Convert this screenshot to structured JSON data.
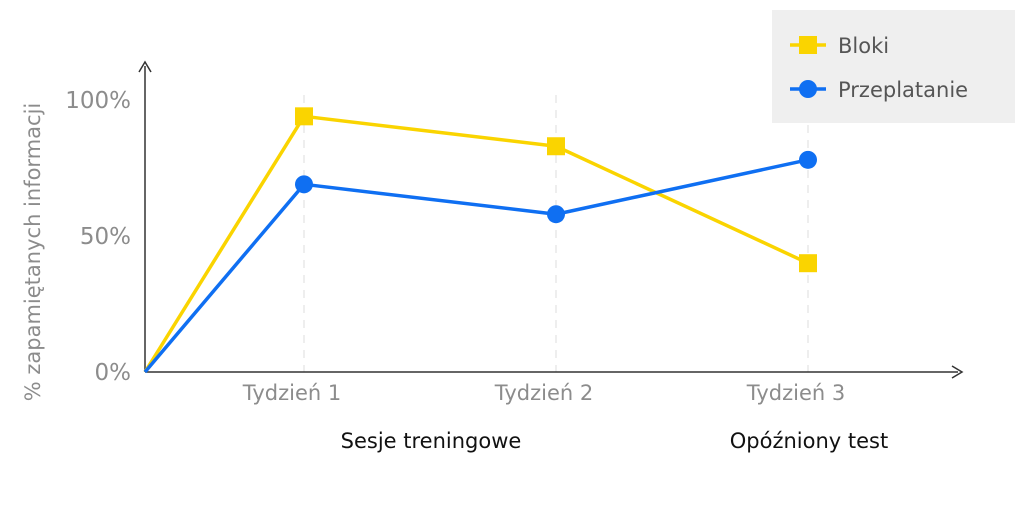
{
  "colors": {
    "bloki": "#fad400",
    "przeplatanie": "#0f6ff2",
    "axis": "#333333",
    "tick_text": "#8c8c8c",
    "group_text": "#111111",
    "grid": "#dcdcdc",
    "legend_bg": "#efefef"
  },
  "chart_data": {
    "type": "line",
    "title": "",
    "xlabel": "",
    "ylabel": "% zapamiętanych informacji",
    "x_categories": [
      "Tydzień 1",
      "Tydzień 2",
      "Tydzień 3"
    ],
    "x_groups": [
      {
        "label": "Sesje treningowe",
        "covers": [
          "Tydzień 1",
          "Tydzień 2"
        ]
      },
      {
        "label": "Opóźniony test",
        "covers": [
          "Tydzień 3"
        ]
      }
    ],
    "y_ticks": [
      "0%",
      "50%",
      "100%"
    ],
    "ylim": [
      0,
      100
    ],
    "legend_position": "top-right",
    "series": [
      {
        "name": "Bloki",
        "marker": "square",
        "x": [
          "start",
          "Tydzień 1",
          "Tydzień 2",
          "Tydzień 3"
        ],
        "values": [
          0,
          94,
          83,
          40
        ]
      },
      {
        "name": "Przeplatanie",
        "marker": "circle",
        "x": [
          "start",
          "Tydzień 1",
          "Tydzień 2",
          "Tydzień 3"
        ],
        "values": [
          0,
          69,
          58,
          78
        ]
      }
    ]
  }
}
